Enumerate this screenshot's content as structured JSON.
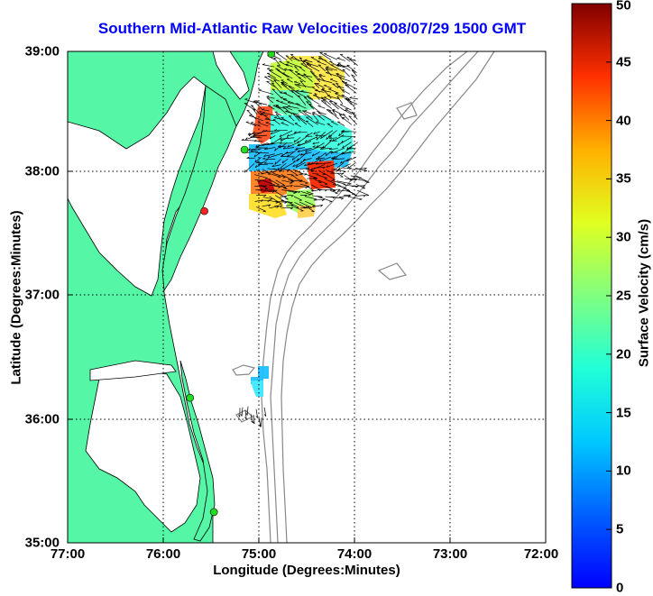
{
  "title": "Southern Mid-Atlantic Raw Velocities 2008/07/29 1500 GMT",
  "xlabel": "Longitude (Degrees:Minutes)",
  "ylabel": "Latitude (Degrees:Minutes)",
  "colorbar_label": "Surface Velocity (cm/s)",
  "colors": {
    "land": "#55f7a7",
    "title": "#0000ff",
    "contour": "#888888",
    "station": "#22dd22",
    "station_alt": "#ff2222"
  },
  "chart_data": {
    "type": "map",
    "x_ticks": [
      "77:00",
      "76:00",
      "75:00",
      "74:00",
      "73:00",
      "72:00"
    ],
    "y_ticks": [
      "39:00",
      "38:00",
      "37:00",
      "36:00",
      "35:00"
    ],
    "xlim": [
      -77,
      -72
    ],
    "ylim": [
      35,
      39
    ],
    "grid": true,
    "colorbar": {
      "min": 0,
      "max": 50,
      "ticks": [
        "0",
        "5",
        "10",
        "15",
        "20",
        "25",
        "30",
        "35",
        "40",
        "45",
        "50"
      ],
      "colormap": "jet"
    },
    "stations": [
      {
        "lon": -74.87,
        "lat": 38.98,
        "color": "green"
      },
      {
        "lon": -75.15,
        "lat": 38.2,
        "color": "green"
      },
      {
        "lon": -75.57,
        "lat": 37.7,
        "color": "red"
      },
      {
        "lon": -75.72,
        "lat": 36.18,
        "color": "green"
      },
      {
        "lon": -75.47,
        "lat": 35.25,
        "color": "green"
      }
    ]
  }
}
